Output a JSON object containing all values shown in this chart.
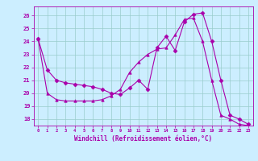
{
  "title": "",
  "xlabel": "Windchill (Refroidissement éolien,°C)",
  "bg_color": "#cceeff",
  "line_color": "#aa00aa",
  "grid_color": "#99cccc",
  "xlim": [
    -0.5,
    23.5
  ],
  "ylim": [
    17.5,
    26.7
  ],
  "yticks": [
    18,
    19,
    20,
    21,
    22,
    23,
    24,
    25,
    26
  ],
  "xticks": [
    0,
    1,
    2,
    3,
    4,
    5,
    6,
    7,
    8,
    9,
    10,
    11,
    12,
    13,
    14,
    15,
    16,
    17,
    18,
    19,
    20,
    21,
    22,
    23
  ],
  "series": [
    {
      "x": [
        0,
        1,
        2,
        3,
        4,
        5,
        6,
        7,
        8,
        9,
        10,
        11,
        12,
        13,
        14,
        15,
        16,
        17,
        18,
        19,
        20,
        21,
        22,
        23
      ],
      "y": [
        24.2,
        21.8,
        21.0,
        20.8,
        20.7,
        20.6,
        20.5,
        20.3,
        20.0,
        19.9,
        20.4,
        21.0,
        20.3,
        23.5,
        24.4,
        23.3,
        25.5,
        26.1,
        26.2,
        24.0,
        21.0,
        18.3,
        18.0,
        17.6
      ],
      "marker": "D",
      "markersize": 2.5
    },
    {
      "x": [
        0,
        1,
        2,
        3,
        4,
        5,
        6,
        7,
        8,
        9,
        10,
        11,
        12,
        13,
        14,
        15,
        16,
        17,
        18,
        19,
        20,
        21,
        22,
        23
      ],
      "y": [
        24.2,
        20.0,
        19.5,
        19.4,
        19.4,
        19.4,
        19.4,
        19.5,
        19.8,
        20.3,
        21.6,
        22.4,
        23.0,
        23.4,
        23.5,
        24.5,
        25.7,
        25.8,
        24.0,
        21.0,
        18.3,
        18.0,
        17.6,
        17.5
      ],
      "marker": "^",
      "markersize": 2.5
    }
  ]
}
